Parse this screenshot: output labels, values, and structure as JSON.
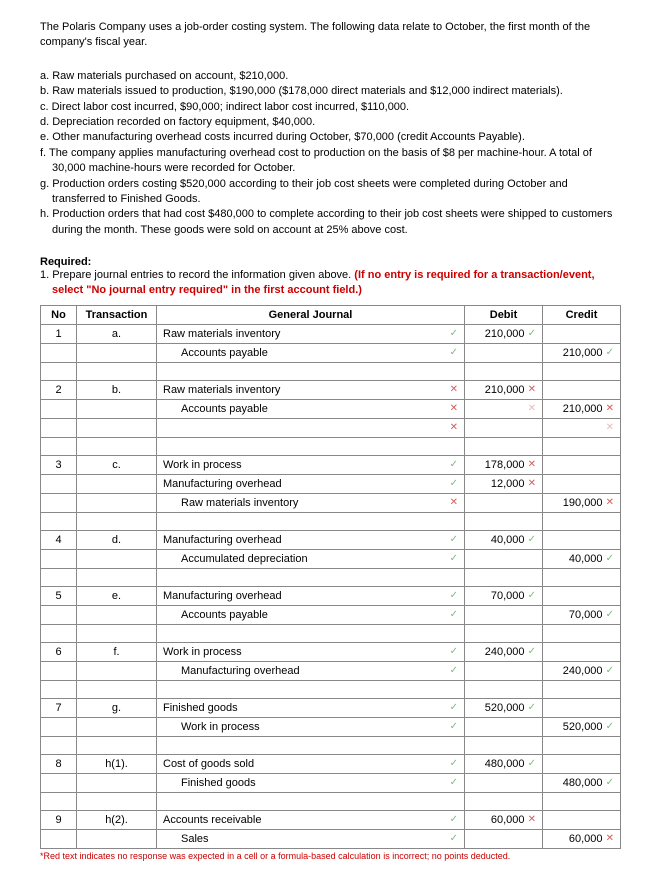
{
  "intro": "The Polaris Company uses a job-order costing system. The following data relate to October, the first month of the company's fiscal year.",
  "items": {
    "a": "a. Raw materials purchased on account, $210,000.",
    "b": "b. Raw materials issued to production, $190,000 ($178,000 direct materials and $12,000 indirect materials).",
    "c": "c. Direct labor cost incurred, $90,000; indirect labor cost incurred, $110,000.",
    "d": "d. Depreciation recorded on factory equipment, $40,000.",
    "e": "e. Other manufacturing overhead costs incurred during October, $70,000 (credit Accounts Payable).",
    "f": "f. The company applies manufacturing overhead cost to production on the basis of $8 per machine-hour. A total of 30,000 machine-hours were recorded for October.",
    "g": "g. Production orders costing $520,000 according to their job cost sheets were completed during October and transferred to Finished Goods.",
    "h": "h. Production orders that had cost $480,000 to complete according to their job cost sheets were shipped to customers during the month. These goods were sold on account at 25% above cost."
  },
  "requiredLabel": "Required:",
  "requiredText": "1. Prepare journal entries to record the information given above. ",
  "requiredRed": "(If no entry is required for a transaction/event, select \"No journal entry required\" in the first account field.)",
  "headers": {
    "no": "No",
    "tx": "Transaction",
    "gj": "General Journal",
    "dr": "Debit",
    "cr": "Credit"
  },
  "checkGlyph": "✓",
  "xGlyph": "✕",
  "rows": [
    {
      "no": "1",
      "tx": "a.",
      "gj": "Raw materials inventory",
      "dr": "210,000",
      "cr": "",
      "indent": 0,
      "drMark": "ok",
      "gjMark": "ok"
    },
    {
      "gj": "Accounts payable",
      "dr": "",
      "cr": "210,000",
      "indent": 1,
      "crMark": "ok",
      "gjMark": "ok"
    },
    {
      "spacer": true
    },
    {
      "no": "2",
      "tx": "b.",
      "gj": "Raw materials inventory",
      "dr": "210,000",
      "cr": "",
      "indent": 0,
      "drMark": "bad",
      "gjMark": "bad"
    },
    {
      "gj": "Accounts payable",
      "dr": "",
      "cr": "210,000",
      "indent": 1,
      "crMark": "bad",
      "gjMark": "bad",
      "drMark": "badlite"
    },
    {
      "gj": "",
      "dr": "",
      "cr": "",
      "indent": 1,
      "gjMark": "bad",
      "crMark": "badlite"
    },
    {
      "spacer": true
    },
    {
      "no": "3",
      "tx": "c.",
      "gj": "Work in process",
      "dr": "178,000",
      "cr": "",
      "indent": 0,
      "drMark": "bad",
      "gjMark": "ok"
    },
    {
      "gj": "Manufacturing overhead",
      "dr": "12,000",
      "cr": "",
      "indent": 0,
      "drMark": "bad",
      "gjMark": "ok"
    },
    {
      "gj": "Raw materials inventory",
      "dr": "",
      "cr": "190,000",
      "indent": 1,
      "crMark": "bad",
      "gjMark": "bad"
    },
    {
      "spacer": true
    },
    {
      "no": "4",
      "tx": "d.",
      "gj": "Manufacturing overhead",
      "dr": "40,000",
      "cr": "",
      "indent": 0,
      "drMark": "ok",
      "gjMark": "ok"
    },
    {
      "gj": "Accumulated depreciation",
      "dr": "",
      "cr": "40,000",
      "indent": 1,
      "crMark": "ok",
      "gjMark": "ok"
    },
    {
      "spacer": true
    },
    {
      "no": "5",
      "tx": "e.",
      "gj": "Manufacturing overhead",
      "dr": "70,000",
      "cr": "",
      "indent": 0,
      "drMark": "ok",
      "gjMark": "ok"
    },
    {
      "gj": "Accounts payable",
      "dr": "",
      "cr": "70,000",
      "indent": 1,
      "crMark": "ok",
      "gjMark": "ok"
    },
    {
      "spacer": true
    },
    {
      "no": "6",
      "tx": "f.",
      "gj": "Work in process",
      "dr": "240,000",
      "cr": "",
      "indent": 0,
      "drMark": "ok",
      "gjMark": "ok"
    },
    {
      "gj": "Manufacturing overhead",
      "dr": "",
      "cr": "240,000",
      "indent": 1,
      "crMark": "ok",
      "gjMark": "ok"
    },
    {
      "spacer": true
    },
    {
      "no": "7",
      "tx": "g.",
      "gj": "Finished goods",
      "dr": "520,000",
      "cr": "",
      "indent": 0,
      "drMark": "ok",
      "gjMark": "ok"
    },
    {
      "gj": "Work in process",
      "dr": "",
      "cr": "520,000",
      "indent": 1,
      "crMark": "ok",
      "gjMark": "ok"
    },
    {
      "spacer": true
    },
    {
      "no": "8",
      "tx": "h(1).",
      "gj": "Cost of goods sold",
      "dr": "480,000",
      "cr": "",
      "indent": 0,
      "drMark": "ok",
      "gjMark": "ok"
    },
    {
      "gj": "Finished goods",
      "dr": "",
      "cr": "480,000",
      "indent": 1,
      "crMark": "ok",
      "gjMark": "ok"
    },
    {
      "spacer": true
    },
    {
      "no": "9",
      "tx": "h(2).",
      "gj": "Accounts receivable",
      "dr": "60,000",
      "cr": "",
      "indent": 0,
      "drMark": "bad",
      "gjMark": "ok"
    },
    {
      "gj": "Sales",
      "dr": "",
      "cr": "60,000",
      "indent": 1,
      "crMark": "bad",
      "gjMark": "ok"
    }
  ],
  "footnote": "*Red text indicates no response was expected in a cell or a formula-based calculation is incorrect; no points deducted."
}
